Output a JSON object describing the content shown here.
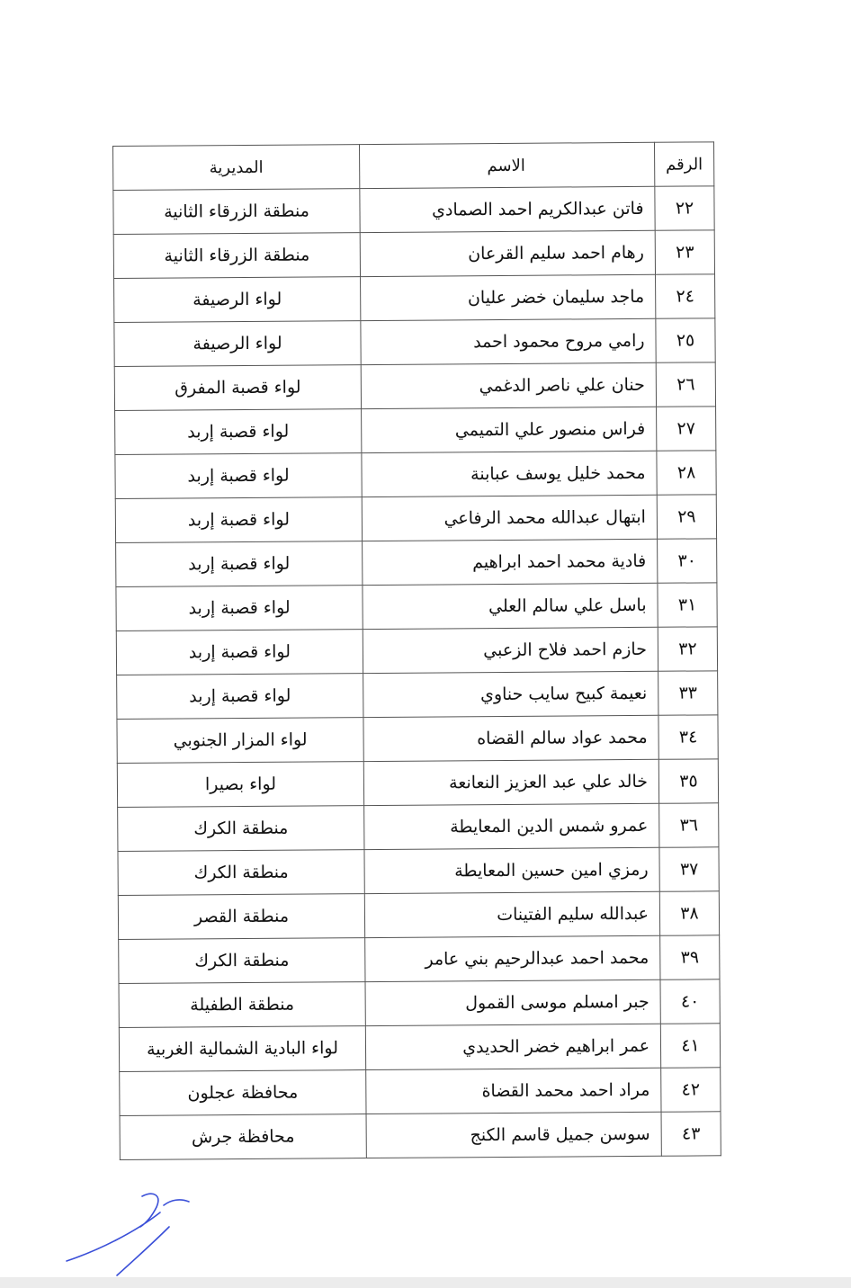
{
  "table": {
    "headers": {
      "number": "الرقم",
      "name": "الاسم",
      "directorate": "المديرية"
    },
    "rows": [
      {
        "number": "٢٢",
        "name": "فاتن عبدالكريم احمد الصمادي",
        "directorate": "منطقة الزرقاء الثانية"
      },
      {
        "number": "٢٣",
        "name": "رهام احمد سليم القرعان",
        "directorate": "منطقة الزرقاء الثانية"
      },
      {
        "number": "٢٤",
        "name": "ماجد سليمان خضر عليان",
        "directorate": "لواء الرصيفة"
      },
      {
        "number": "٢٥",
        "name": "رامي مروح محمود احمد",
        "directorate": "لواء الرصيفة"
      },
      {
        "number": "٢٦",
        "name": "حنان علي ناصر الدغمي",
        "directorate": "لواء قصبة المفرق"
      },
      {
        "number": "٢٧",
        "name": "فراس منصور علي التميمي",
        "directorate": "لواء قصبة إربد"
      },
      {
        "number": "٢٨",
        "name": "محمد خليل يوسف عبابنة",
        "directorate": "لواء قصبة إربد"
      },
      {
        "number": "٢٩",
        "name": "ابتهال عبدالله محمد الرفاعي",
        "directorate": "لواء قصبة إربد"
      },
      {
        "number": "٣٠",
        "name": "فادية محمد احمد ابراهيم",
        "directorate": "لواء قصبة إربد"
      },
      {
        "number": "٣١",
        "name": "باسل علي سالم العلي",
        "directorate": "لواء قصبة إربد"
      },
      {
        "number": "٣٢",
        "name": "حازم احمد فلاح الزعبي",
        "directorate": "لواء قصبة إربد"
      },
      {
        "number": "٣٣",
        "name": "نعيمة كبيح سايب حناوي",
        "directorate": "لواء قصبة إربد"
      },
      {
        "number": "٣٤",
        "name": "محمد عواد سالم القضاه",
        "directorate": "لواء المزار الجنوبي"
      },
      {
        "number": "٣٥",
        "name": "خالد علي عبد العزيز النعانعة",
        "directorate": "لواء بصيرا"
      },
      {
        "number": "٣٦",
        "name": "عمرو شمس الدين المعايطة",
        "directorate": "منطقة الكرك"
      },
      {
        "number": "٣٧",
        "name": "رمزي امين حسين المعايطة",
        "directorate": "منطقة الكرك"
      },
      {
        "number": "٣٨",
        "name": "عبدالله سليم الفتينات",
        "directorate": "منطقة القصر"
      },
      {
        "number": "٣٩",
        "name": "محمد احمد عبدالرحيم بني عامر",
        "directorate": "منطقة الكرك"
      },
      {
        "number": "٤٠",
        "name": "جبر امسلم موسى القمول",
        "directorate": "منطقة الطفيلة"
      },
      {
        "number": "٤١",
        "name": "عمر ابراهيم خضر الحديدي",
        "directorate": "لواء البادية الشمالية الغربية"
      },
      {
        "number": "٤٢",
        "name": "مراد احمد محمد القضاة",
        "directorate": "محافظة عجلون"
      },
      {
        "number": "٤٣",
        "name": "سوسن جميل قاسم الكنج",
        "directorate": "محافظة جرش"
      }
    ]
  },
  "signature_color": "#3a4fd8"
}
